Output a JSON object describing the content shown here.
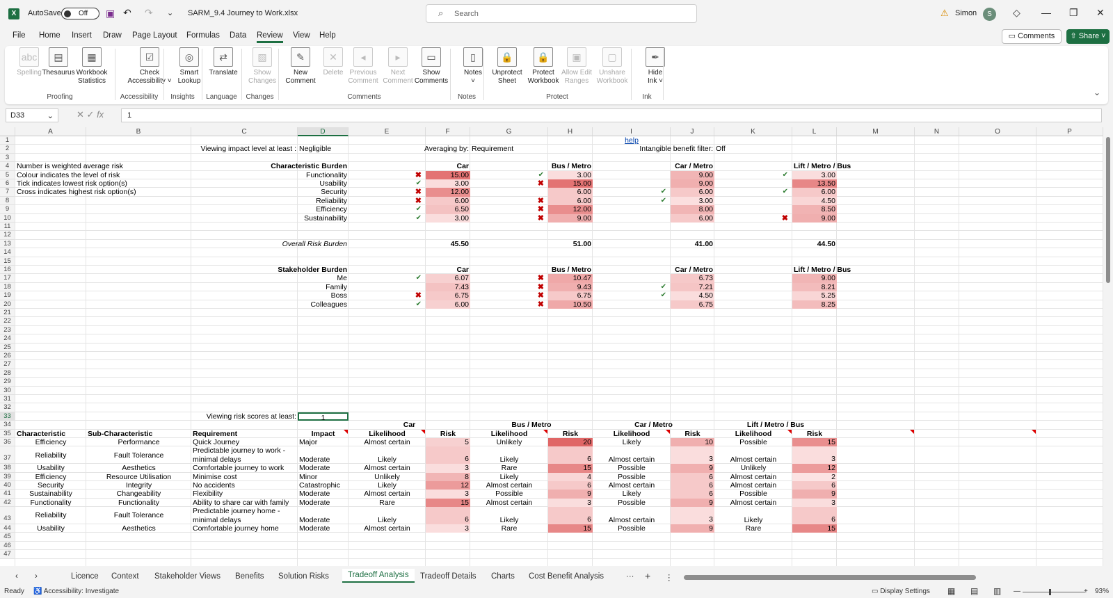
{
  "titlebar": {
    "autosave_label": "AutoSave",
    "autosave_state": "Off",
    "filename": "SARM_9.4 Journey to Work.xlsx",
    "search_placeholder": "Search",
    "user_name": "Simon",
    "user_initial": "S"
  },
  "menu": {
    "tabs": [
      "File",
      "Home",
      "Insert",
      "Draw",
      "Page Layout",
      "Formulas",
      "Data",
      "Review",
      "View",
      "Help"
    ],
    "active": "Review",
    "comments_label": "Comments",
    "share_label": "Share"
  },
  "ribbon": {
    "buttons": [
      {
        "l1": "Spelling",
        "l2": "",
        "disabled": true
      },
      {
        "l1": "Thesaurus",
        "l2": "",
        "disabled": false
      },
      {
        "l1": "Workbook",
        "l2": "Statistics",
        "disabled": false
      },
      {
        "l1": "Check",
        "l2": "Accessibility ˅",
        "disabled": false
      },
      {
        "l1": "Smart",
        "l2": "Lookup",
        "disabled": false
      },
      {
        "l1": "Translate",
        "l2": "",
        "disabled": false
      },
      {
        "l1": "Show",
        "l2": "Changes",
        "disabled": true
      },
      {
        "l1": "New",
        "l2": "Comment",
        "disabled": false
      },
      {
        "l1": "Delete",
        "l2": "",
        "disabled": true
      },
      {
        "l1": "Previous",
        "l2": "Comment",
        "disabled": true
      },
      {
        "l1": "Next",
        "l2": "Comment",
        "disabled": true
      },
      {
        "l1": "Show",
        "l2": "Comments",
        "disabled": false
      },
      {
        "l1": "Notes",
        "l2": "˅",
        "disabled": false
      },
      {
        "l1": "Unprotect",
        "l2": "Sheet",
        "disabled": false
      },
      {
        "l1": "Protect",
        "l2": "Workbook",
        "disabled": false
      },
      {
        "l1": "Allow Edit",
        "l2": "Ranges",
        "disabled": true
      },
      {
        "l1": "Unshare",
        "l2": "Workbook",
        "disabled": true
      },
      {
        "l1": "Hide",
        "l2": "Ink ˅",
        "disabled": false
      }
    ],
    "groups": [
      "Proofing",
      "Accessibility",
      "Insights",
      "Language",
      "Changes",
      "Comments",
      "Notes",
      "Protect",
      "Ink"
    ]
  },
  "formula_bar": {
    "name_box": "D33",
    "value": "1"
  },
  "columns": [
    "A",
    "B",
    "C",
    "D",
    "E",
    "F",
    "G",
    "H",
    "I",
    "J",
    "K",
    "L",
    "M",
    "N",
    "O",
    "P"
  ],
  "sheet": {
    "r1": {
      "help": "help"
    },
    "r2": {
      "viewing_label": "Viewing impact level at least :",
      "viewing_value": "Negligible",
      "avg_label": "Averaging by:",
      "avg_value": "Requirement",
      "intangible_label": "Intangible benefit filter:",
      "intangible_value": "Off"
    },
    "notes": [
      "Number is weighted average risk",
      "Colour indicates the level of risk",
      "Tick indicates lowest risk option(s)",
      "Cross indicates highest risk option(s)"
    ],
    "char_header": "Characteristic Burden",
    "options": [
      "Car",
      "Bus / Metro",
      "Car / Metro",
      "Lift / Metro / Bus"
    ],
    "characteristics": [
      {
        "name": "Functionality",
        "vals": [
          "15.00",
          "3.00",
          "9.00",
          "3.00"
        ],
        "marks": [
          "x",
          "t",
          "",
          "t"
        ],
        "shade": [
          0.9,
          0.1,
          0.4,
          0.1
        ]
      },
      {
        "name": "Usability",
        "vals": [
          "3.00",
          "15.00",
          "9.00",
          "13.50"
        ],
        "marks": [
          "t",
          "x",
          "",
          ""
        ],
        "shade": [
          0.1,
          0.9,
          0.45,
          0.75
        ]
      },
      {
        "name": "Security",
        "vals": [
          "12.00",
          "6.00",
          "6.00",
          "6.00"
        ],
        "marks": [
          "x",
          "",
          "t",
          "t"
        ],
        "shade": [
          0.7,
          0.25,
          0.25,
          0.25
        ]
      },
      {
        "name": "Reliability",
        "vals": [
          "6.00",
          "6.00",
          "3.00",
          "4.50"
        ],
        "marks": [
          "x",
          "x",
          "t",
          ""
        ],
        "shade": [
          0.25,
          0.25,
          0.08,
          0.15
        ]
      },
      {
        "name": "Efficiency",
        "vals": [
          "6.50",
          "12.00",
          "8.00",
          "8.50"
        ],
        "marks": [
          "t",
          "x",
          "",
          ""
        ],
        "shade": [
          0.3,
          0.7,
          0.4,
          0.42
        ]
      },
      {
        "name": "Sustainability",
        "vals": [
          "3.00",
          "9.00",
          "6.00",
          "9.00"
        ],
        "marks": [
          "t",
          "x",
          "",
          "x"
        ],
        "shade": [
          0.1,
          0.45,
          0.25,
          0.45
        ]
      }
    ],
    "overall_label": "Overall Risk Burden",
    "overall": [
      "45.50",
      "51.00",
      "41.00",
      "44.50"
    ],
    "stake_header": "Stakeholder Burden",
    "stakeholders": [
      {
        "name": "Me",
        "vals": [
          "6.07",
          "10.47",
          "6.73",
          "9.00"
        ],
        "marks": [
          "t",
          "x",
          "",
          ""
        ],
        "shade": [
          0.2,
          0.5,
          0.25,
          0.4
        ]
      },
      {
        "name": "Family",
        "vals": [
          "7.43",
          "9.43",
          "7.21",
          "8.21"
        ],
        "marks": [
          "",
          "x",
          "t",
          ""
        ],
        "shade": [
          0.3,
          0.45,
          0.28,
          0.35
        ]
      },
      {
        "name": "Boss",
        "vals": [
          "6.75",
          "6.75",
          "4.50",
          "5.25"
        ],
        "marks": [
          "x",
          "x",
          "t",
          ""
        ],
        "shade": [
          0.25,
          0.25,
          0.1,
          0.15
        ]
      },
      {
        "name": "Colleagues",
        "vals": [
          "6.00",
          "10.50",
          "6.75",
          "8.25"
        ],
        "marks": [
          "t",
          "x",
          "",
          ""
        ],
        "shade": [
          0.2,
          0.5,
          0.25,
          0.35
        ]
      }
    ],
    "risk_label": "Viewing risk scores at least:",
    "risk_value": "1",
    "table_headers": [
      "Characteristic",
      "Sub-Characteristic",
      "Requirement",
      "Impact",
      "Likelihood",
      "Risk"
    ],
    "requirements": [
      {
        "row": "36",
        "char": "Efficiency",
        "sub": "Performance",
        "req": [
          "Quick Journey"
        ],
        "impact": "Major",
        "lik": [
          "Almost certain",
          "Unlikely",
          "Likely",
          "Possible"
        ],
        "risk": [
          "5",
          "20",
          "10",
          "15"
        ],
        "shade": [
          0.2,
          1.0,
          0.45,
          0.7
        ]
      },
      {
        "row": "37",
        "char": "Reliability",
        "sub": "Fault Tolerance",
        "req": [
          "Predictable journey to work -",
          "minimal delays"
        ],
        "impact": "Moderate",
        "lik": [
          "Likely",
          "Likely",
          "Almost certain",
          "Almost certain"
        ],
        "risk": [
          "6",
          "6",
          "3",
          "3"
        ],
        "shade": [
          0.25,
          0.25,
          0.1,
          0.1
        ]
      },
      {
        "row": "38",
        "char": "Usability",
        "sub": "Aesthetics",
        "req": [
          "Comfortable journey to work"
        ],
        "impact": "Moderate",
        "lik": [
          "Almost certain",
          "Rare",
          "Possible",
          "Unlikely"
        ],
        "risk": [
          "3",
          "15",
          "9",
          "12"
        ],
        "shade": [
          0.1,
          0.75,
          0.45,
          0.6
        ]
      },
      {
        "row": "39",
        "char": "Efficiency",
        "sub": "Resource Utilisation",
        "req": [
          "Minimise cost"
        ],
        "impact": "Minor",
        "lik": [
          "Unlikely",
          "Likely",
          "Possible",
          "Almost certain"
        ],
        "risk": [
          "8",
          "4",
          "6",
          "2"
        ],
        "shade": [
          0.4,
          0.15,
          0.25,
          0.05
        ]
      },
      {
        "row": "40",
        "char": "Security",
        "sub": "Integrity",
        "req": [
          "No accidents"
        ],
        "impact": "Catastrophic",
        "lik": [
          "Likely",
          "Almost certain",
          "Almost certain",
          "Almost certain"
        ],
        "risk": [
          "12",
          "6",
          "6",
          "6"
        ],
        "shade": [
          0.6,
          0.25,
          0.25,
          0.25
        ]
      },
      {
        "row": "41",
        "char": "Sustainability",
        "sub": "Changeability",
        "req": [
          "Flexibility"
        ],
        "impact": "Moderate",
        "lik": [
          "Almost certain",
          "Possible",
          "Likely",
          "Possible"
        ],
        "risk": [
          "3",
          "9",
          "6",
          "9"
        ],
        "shade": [
          0.1,
          0.45,
          0.25,
          0.45
        ]
      },
      {
        "row": "42",
        "char": "Functionality",
        "sub": "Functionality",
        "req": [
          "Ability to share car with family"
        ],
        "impact": "Moderate",
        "lik": [
          "Rare",
          "Almost certain",
          "Possible",
          "Almost certain"
        ],
        "risk": [
          "15",
          "3",
          "9",
          "3"
        ],
        "shade": [
          0.75,
          0.1,
          0.45,
          0.1
        ]
      },
      {
        "row": "43",
        "char": "Reliability",
        "sub": "Fault Tolerance",
        "req": [
          "Predictable journey home -",
          "minimal delays"
        ],
        "impact": "Moderate",
        "lik": [
          "Likely",
          "Likely",
          "Almost certain",
          "Likely"
        ],
        "risk": [
          "6",
          "6",
          "3",
          "6"
        ],
        "shade": [
          0.25,
          0.25,
          0.1,
          0.25
        ]
      },
      {
        "row": "44",
        "char": "Usability",
        "sub": "Aesthetics",
        "req": [
          "Comfortable journey home"
        ],
        "impact": "Moderate",
        "lik": [
          "Almost certain",
          "Rare",
          "Possible",
          "Rare"
        ],
        "risk": [
          "3",
          "15",
          "9",
          "15"
        ],
        "shade": [
          0.1,
          0.75,
          0.45,
          0.75
        ]
      }
    ]
  },
  "sheet_tabs": [
    "Licence",
    "Context",
    "Stakeholder Views",
    "Benefits",
    "Solution Risks",
    "Tradeoff Analysis",
    "Tradeoff Details",
    "Charts",
    "Cost Benefit Analysis"
  ],
  "active_tab": "Tradeoff Analysis",
  "status": {
    "ready": "Ready",
    "accessibility": "Accessibility: Investigate",
    "display": "Display Settings",
    "zoom": "93%"
  },
  "colors": {
    "accent": "#1d6f42",
    "risk_max": "#e06666",
    "risk_min": "#fdeaea"
  }
}
